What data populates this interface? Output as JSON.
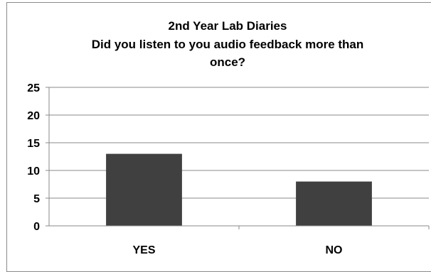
{
  "chart_data": {
    "type": "bar",
    "title_lines": [
      "2nd Year Lab Diaries",
      "Did you listen to you audio feedback more than",
      "once?"
    ],
    "categories": [
      "YES",
      "NO"
    ],
    "values": [
      13,
      8
    ],
    "ylim": [
      0,
      25
    ],
    "yticks": [
      0,
      5,
      10,
      15,
      20,
      25
    ],
    "grid": true,
    "legend": "none",
    "colors": {
      "bar": "#404040",
      "grid": "#8a8a8a",
      "axis": "#8a8a8a"
    }
  }
}
